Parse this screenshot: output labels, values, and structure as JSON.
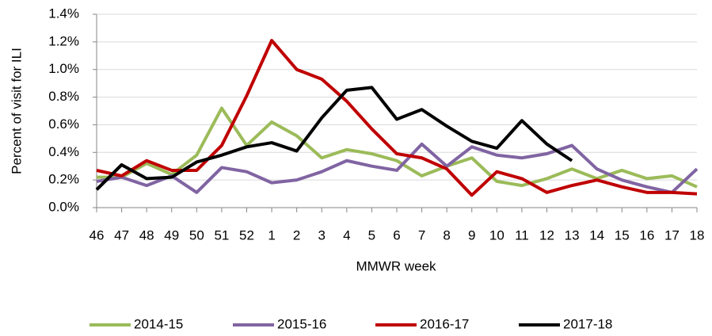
{
  "chart_data": {
    "type": "line",
    "y_label": "Percent of visit for ILI",
    "x_label": "MMWR week",
    "categories": [
      "46",
      "47",
      "48",
      "49",
      "50",
      "51",
      "52",
      "1",
      "2",
      "3",
      "4",
      "5",
      "6",
      "7",
      "8",
      "9",
      "10",
      "11",
      "12",
      "13",
      "14",
      "15",
      "16",
      "17",
      "18"
    ],
    "ylim": [
      0,
      1.4
    ],
    "yticks": [
      {
        "value": 0,
        "label": "0.0%"
      },
      {
        "value": 0.2,
        "label": "0.2%"
      },
      {
        "value": 0.4,
        "label": "0.4%"
      },
      {
        "value": 0.6,
        "label": "0.6%"
      },
      {
        "value": 0.8,
        "label": "0.8%"
      },
      {
        "value": 1.0,
        "label": "1.0%"
      },
      {
        "value": 1.2,
        "label": "1.2%"
      },
      {
        "value": 1.4,
        "label": "1.4%"
      }
    ],
    "grid": true,
    "legend": "bottom",
    "series": [
      {
        "name": "2014-15",
        "color": "#9bbb59",
        "values": [
          0.22,
          0.22,
          0.32,
          0.24,
          0.38,
          0.72,
          0.45,
          0.62,
          0.52,
          0.36,
          0.42,
          0.39,
          0.34,
          0.23,
          0.3,
          0.36,
          0.19,
          0.16,
          0.21,
          0.28,
          0.21,
          0.27,
          0.21,
          0.23,
          0.15
        ]
      },
      {
        "name": "2015-16",
        "color": "#8064a2",
        "values": [
          0.19,
          0.22,
          0.16,
          0.23,
          0.11,
          0.29,
          0.26,
          0.18,
          0.2,
          0.26,
          0.34,
          0.3,
          0.27,
          0.46,
          0.3,
          0.44,
          0.38,
          0.36,
          0.39,
          0.45,
          0.28,
          0.2,
          0.15,
          0.11,
          0.28
        ]
      },
      {
        "name": "2016-17",
        "color": "#c00000",
        "values": [
          0.27,
          0.23,
          0.34,
          0.27,
          0.27,
          0.45,
          0.81,
          1.21,
          1.0,
          0.93,
          0.77,
          0.57,
          0.39,
          0.36,
          0.28,
          0.09,
          0.26,
          0.21,
          0.11,
          0.16,
          0.2,
          0.15,
          0.11,
          0.11,
          0.1
        ]
      },
      {
        "name": "2017-18",
        "color": "#000000",
        "values": [
          0.13,
          0.31,
          0.21,
          0.22,
          0.33,
          0.38,
          0.44,
          0.47,
          0.41,
          0.65,
          0.85,
          0.87,
          0.64,
          0.71,
          0.59,
          0.48,
          0.43,
          0.63,
          0.46,
          0.34,
          null,
          null,
          null,
          null,
          null
        ]
      }
    ]
  }
}
